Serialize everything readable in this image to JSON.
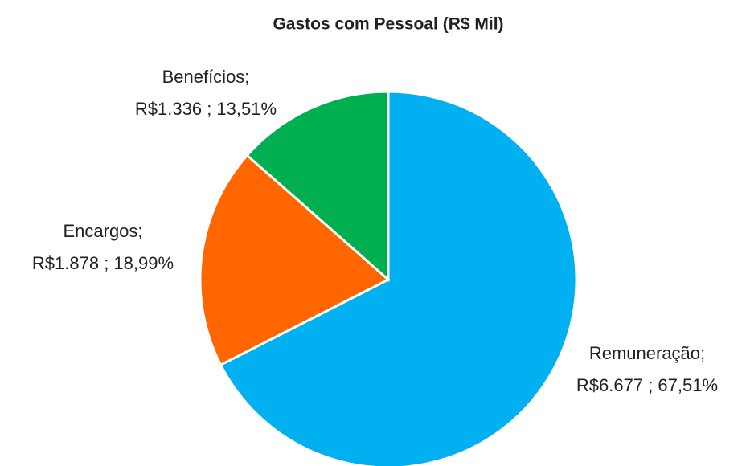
{
  "chart_data": {
    "type": "pie",
    "title": "Gastos com Pessoal  (R$ Mil)",
    "categories": [
      "Remuneração;",
      "Encargos;",
      "Benefícios;"
    ],
    "values": [
      6677,
      1878,
      1336
    ],
    "value_labels": [
      "R$6.677 ; 67,51%",
      "R$1.878 ; 18,99%",
      "R$1.336 ; 13,51%"
    ],
    "colors": [
      "#00b0f0",
      "#ff6600",
      "#00b050"
    ]
  }
}
